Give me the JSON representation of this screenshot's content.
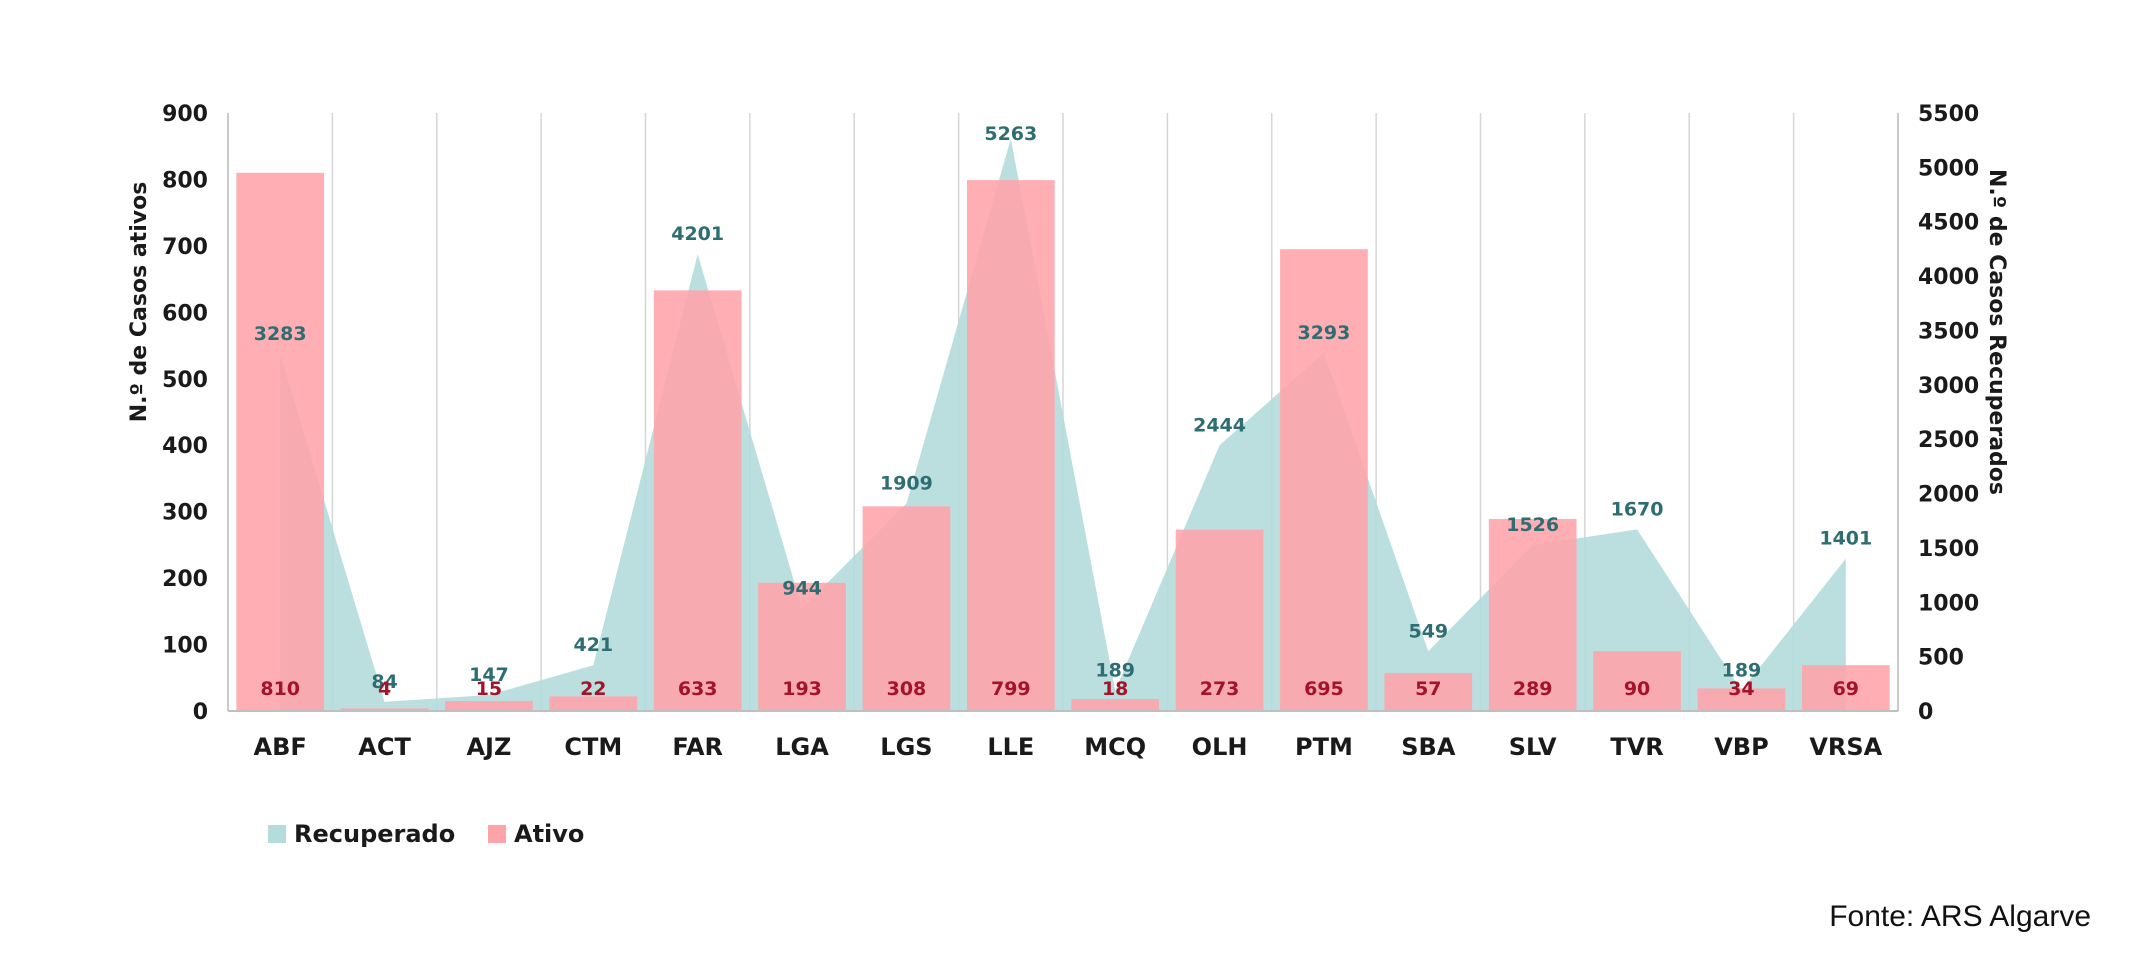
{
  "chart_data": {
    "type": "bar",
    "categories": [
      "ABF",
      "ACT",
      "AJZ",
      "CTM",
      "FAR",
      "LGA",
      "LGS",
      "LLE",
      "MCQ",
      "OLH",
      "PTM",
      "SBA",
      "SLV",
      "TVR",
      "VBP",
      "VRSA"
    ],
    "series": [
      {
        "name": "Recuperado",
        "type": "area",
        "axis": "right",
        "values": [
          3283,
          84,
          147,
          421,
          4201,
          944,
          1909,
          5263,
          189,
          2444,
          3293,
          549,
          1526,
          1670,
          189,
          1401
        ]
      },
      {
        "name": "Ativo",
        "type": "bar",
        "axis": "left",
        "values": [
          810,
          4,
          15,
          22,
          633,
          193,
          308,
          799,
          18,
          273,
          695,
          57,
          289,
          90,
          34,
          69
        ]
      }
    ],
    "ylabel": "N.º de Casos ativos",
    "y2label": "N.º de Casos Recuperados",
    "ylim": [
      0,
      900
    ],
    "y2lim": [
      0,
      5500
    ],
    "yticks": [
      0,
      100,
      200,
      300,
      400,
      500,
      600,
      700,
      800,
      900
    ],
    "y2ticks": [
      0,
      500,
      1000,
      1500,
      2000,
      2500,
      3000,
      3500,
      4000,
      4500,
      5000,
      5500
    ],
    "grid": "vertical",
    "legend": "bottom-left"
  },
  "colors": {
    "recuperado": "#b4dcdb",
    "ativo": "#ffa3aa",
    "recuperado_label": "#2e6e72",
    "ativo_label": "#a3142a"
  },
  "source": "Fonte: ARS Algarve"
}
